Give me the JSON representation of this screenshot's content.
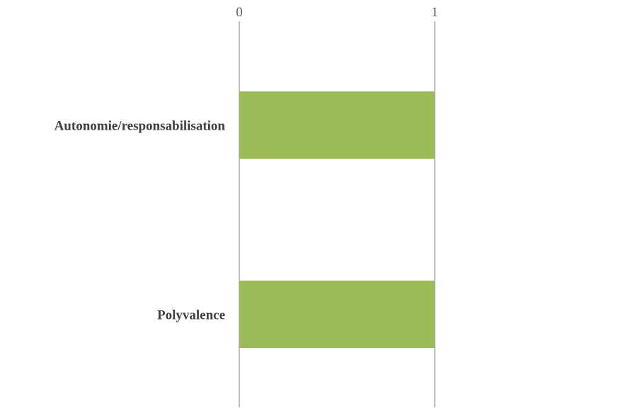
{
  "chart_data": {
    "type": "bar",
    "orientation": "horizontal",
    "categories": [
      "Autonomie/responsabilisation",
      "Polyvalence"
    ],
    "values": [
      1,
      1
    ],
    "xlim": [
      0,
      1
    ],
    "x_ticks": [
      "0",
      "1"
    ],
    "grid": true,
    "legend": "none",
    "title": "",
    "xlabel": "",
    "ylabel": "",
    "bar_color": "#9bbb59",
    "grid_color": "#bfbfbf"
  }
}
